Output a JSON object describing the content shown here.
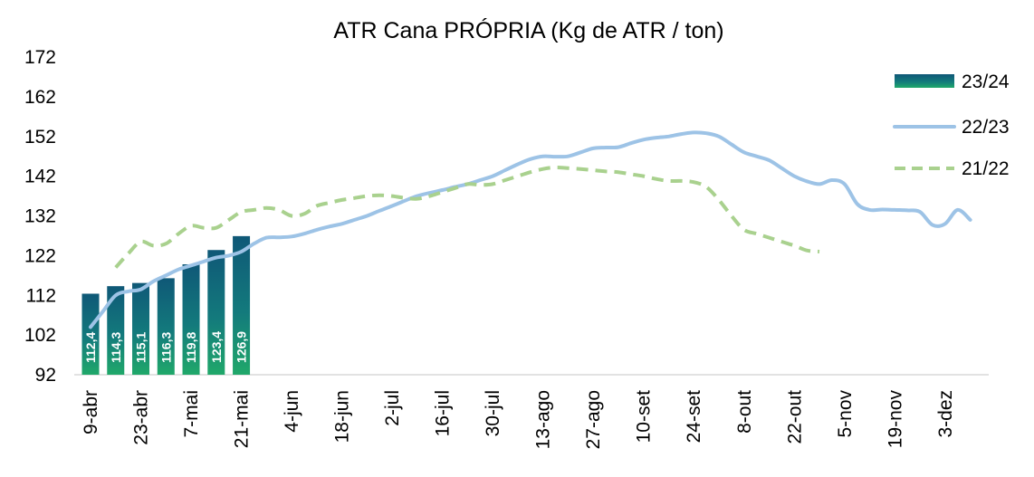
{
  "chart_data": {
    "type": "bar+line",
    "title": "ATR Cana PRÓPRIA (Kg de ATR / ton)",
    "ylim": [
      92,
      172
    ],
    "yticks": [
      92,
      102,
      112,
      122,
      132,
      142,
      152,
      162,
      172
    ],
    "xticks": [
      "9-abr",
      "23-abr",
      "7-mai",
      "21-mai",
      "4-jun",
      "18-jun",
      "2-jul",
      "16-jul",
      "30-jul",
      "13-ago",
      "27-ago",
      "10-set",
      "24-set",
      "8-out",
      "22-out",
      "5-nov",
      "19-nov",
      "3-dez"
    ],
    "bars": {
      "name": "23/24",
      "x": [
        0,
        1,
        2,
        3,
        4,
        5,
        6
      ],
      "values": [
        112.4,
        114.3,
        115.1,
        116.3,
        119.8,
        123.4,
        126.9
      ],
      "labels": [
        "112,4",
        "114,3",
        "115,1",
        "116,3",
        "119,8",
        "123,4",
        "126,9"
      ]
    },
    "series": [
      {
        "name": "22/23",
        "color": "#9dc3e6",
        "style": "solid",
        "x": [
          0,
          0.5,
          1,
          1.5,
          2,
          2.5,
          3,
          3.5,
          4,
          4.5,
          5,
          5.5,
          6,
          6.5,
          7,
          7.5,
          8,
          8.5,
          9,
          9.5,
          10,
          10.5,
          11,
          11.5,
          12,
          12.5,
          13,
          13.5,
          14,
          14.5,
          15,
          15.5,
          16,
          16.5,
          17,
          17.5,
          18,
          18.5,
          19,
          19.5,
          20,
          20.5,
          21,
          21.5,
          22,
          22.5,
          23,
          23.5,
          24,
          24.5,
          25,
          25.5,
          26,
          26.5,
          27,
          27.5,
          28,
          28.5,
          29,
          29.5,
          30,
          30.5,
          31,
          31.5,
          32,
          32.5,
          33,
          33.5,
          34,
          34.5,
          35
        ],
        "values": [
          104,
          108,
          112,
          113,
          113.5,
          115.5,
          117,
          118.5,
          119.5,
          120.5,
          121.5,
          122,
          123,
          125,
          126.5,
          126.6,
          126.8,
          127.5,
          128.5,
          129.3,
          130,
          131,
          132,
          133.3,
          134.5,
          135.8,
          137,
          137.8,
          138.5,
          139.3,
          140,
          141,
          142,
          143.5,
          145,
          146.3,
          147,
          146.9,
          147,
          148,
          149,
          149.2,
          149.3,
          150.3,
          151.2,
          151.7,
          152,
          152.6,
          153,
          152.8,
          152,
          150,
          148,
          147,
          146,
          144,
          142,
          140.7,
          140,
          141,
          140,
          135,
          133.5,
          133.6,
          133.5,
          133.4,
          133,
          129.7,
          130,
          133.5,
          131
        ]
      },
      {
        "name": "21/22",
        "color": "#a9d18e",
        "style": "dashed",
        "x": [
          1,
          1.5,
          2,
          2.5,
          3,
          3.5,
          4,
          4.5,
          5,
          5.5,
          6,
          6.5,
          7,
          7.5,
          8,
          8.5,
          9,
          9.5,
          10,
          10.5,
          11,
          11.5,
          12,
          12.5,
          13,
          13.5,
          14,
          14.5,
          15,
          15.5,
          16,
          16.5,
          17,
          17.5,
          18,
          18.5,
          19,
          19.5,
          20,
          20.5,
          21,
          21.5,
          22,
          22.5,
          23,
          23.5,
          24,
          24.5,
          25,
          25.5,
          26,
          26.5,
          27,
          27.5,
          28,
          28.5,
          29
        ],
        "values": [
          119,
          122.5,
          125.5,
          124.5,
          125,
          127.5,
          129.5,
          129,
          129,
          131,
          133,
          133.5,
          134,
          133.5,
          132,
          132.5,
          134.5,
          135.3,
          136,
          136.5,
          137,
          137.2,
          137,
          136.5,
          136.3,
          137,
          138,
          139,
          140,
          139.8,
          140,
          141,
          142,
          143,
          143.8,
          144.2,
          144,
          143.8,
          143.5,
          143.2,
          143,
          142.5,
          142,
          141.3,
          140.8,
          140.8,
          140.5,
          139.3,
          136,
          132,
          128.5,
          127.5,
          126.5,
          125.5,
          124.5,
          123.3,
          123
        ]
      }
    ],
    "legend": {
      "position": "right",
      "items": [
        {
          "name": "23/24",
          "kind": "bar"
        },
        {
          "name": "22/23",
          "kind": "solid"
        },
        {
          "name": "21/22",
          "kind": "dashed"
        }
      ]
    },
    "grid": false
  }
}
